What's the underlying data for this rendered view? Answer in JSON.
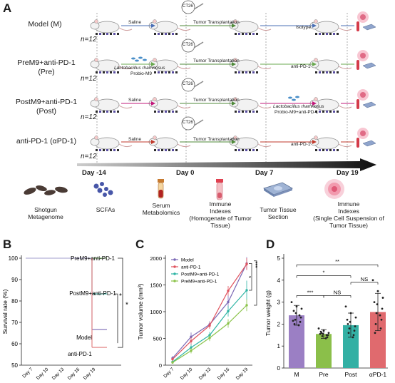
{
  "panel_a": {
    "letter": "A",
    "groups": [
      {
        "label_line1": "Model (M)",
        "label_line2": "",
        "n": "n=12",
        "first_step": "Saline",
        "first_step_sub": "",
        "middle": "Tumor Transplantation",
        "treatment": "Isotype",
        "treatment_sub": "",
        "color": "#4a6fb5"
      },
      {
        "label_line1": "PreM9+anti-PD-1",
        "label_line2": "(Pre)",
        "n": "n=12",
        "first_step": "Lactobacillus rhamnosus",
        "first_step_sub": "Probio-M9",
        "middle": "Tumor Transplantation",
        "treatment": "anti-PD-1",
        "treatment_sub": "",
        "color": "#6aa84f"
      },
      {
        "label_line1": "PostM9+anti-PD-1",
        "label_line2": "(Post)",
        "n": "n=12",
        "first_step": "Saline",
        "first_step_sub": "",
        "middle": "Tumor Transplantation",
        "treatment": "Lactobacillus rhamnosus",
        "treatment_sub": "Probio-M9+anti-PD-1",
        "color": "#c2187a"
      },
      {
        "label_line1": "anti-PD-1 (αPD-1)",
        "label_line2": "",
        "n": "n=12",
        "first_step": "Saline",
        "first_step_sub": "",
        "middle": "Tumor Transplantation",
        "treatment": "anti-PD-1",
        "treatment_sub": "",
        "color": "#c0392b"
      }
    ],
    "ct26_label": "CT26",
    "timeline": [
      "Day -14",
      "Day 0",
      "Day 7",
      "Day 19"
    ],
    "samples": [
      {
        "line1": "Shotgun",
        "line2": "Metagenome",
        "line3": "",
        "icon": "feces-pellets-icon"
      },
      {
        "line1": "SCFAs",
        "line2": "",
        "line3": "",
        "icon": "molecule-dots-icon"
      },
      {
        "line1": "Serum",
        "line2": "Metabolomics",
        "line3": "",
        "icon": "blood-tube-icon"
      },
      {
        "line1": "Immune",
        "line2": "Indexes",
        "line3": "(Homogenate of Tumor Tissue)",
        "icon": "tissue-tube-icon"
      },
      {
        "line1": "Tumor Tissue",
        "line2": "Section",
        "line3": "",
        "icon": "tissue-slide-icon"
      },
      {
        "line1": "Immune",
        "line2": "Indexes",
        "line3": "(Single Cell Suspension of Tumor Tissue)",
        "icon": "cell-cluster-icon"
      }
    ]
  },
  "chart_data": [
    {
      "panel": "B",
      "type": "line",
      "subtype": "kaplan-meier",
      "ylabel": "Survival rate (%)",
      "xlabel": "",
      "categories": [
        "Day 7",
        "Day 10",
        "Day 13",
        "Day 16",
        "Day 19"
      ],
      "ylim": [
        50,
        100
      ],
      "yticks": [
        50,
        60,
        70,
        80,
        90,
        100
      ],
      "series": [
        {
          "name": "PreM9+anti-PD-1",
          "color": "#6aa84f",
          "final": 100
        },
        {
          "name": "PostM9+anti-PD-1",
          "color": "#3ba89a",
          "final": 83.3
        },
        {
          "name": "Model",
          "color": "#7b68b5",
          "final": 66.7
        },
        {
          "name": "anti-PD-1",
          "color": "#e07a7a",
          "final": 58.3
        }
      ],
      "drop_day_index": 4,
      "annotations": [
        "*",
        "*"
      ],
      "grid": false
    },
    {
      "panel": "C",
      "type": "line",
      "ylabel": "Tumor volume (mm³)",
      "xlabel": "",
      "categories": [
        "Day 7",
        "Day 10",
        "Day 13",
        "Day 16",
        "Day 19"
      ],
      "ylim": [
        0,
        2000
      ],
      "yticks": [
        0,
        500,
        1000,
        1500,
        2000
      ],
      "series": [
        {
          "name": "Model",
          "color": "#7b68b5",
          "values": [
            130,
            530,
            760,
            1180,
            1900
          ],
          "err": [
            40,
            80,
            60,
            120,
            120
          ]
        },
        {
          "name": "anti-PD-1",
          "color": "#e0545f",
          "values": [
            110,
            450,
            740,
            1390,
            1890
          ],
          "err": [
            30,
            70,
            60,
            90,
            110
          ]
        },
        {
          "name": "PostM9+anti-PD-1",
          "color": "#2fb5a5",
          "values": [
            60,
            330,
            560,
            1010,
            1400
          ],
          "err": [
            25,
            60,
            60,
            100,
            180
          ]
        },
        {
          "name": "PreM9+anti-PD-1",
          "color": "#8bc34a",
          "values": [
            50,
            270,
            510,
            780,
            1120
          ],
          "err": [
            20,
            50,
            60,
            80,
            110
          ]
        }
      ],
      "annotations": [
        "*",
        "***"
      ],
      "legend": "top-left",
      "grid": false
    },
    {
      "panel": "D",
      "type": "bar",
      "ylabel": "Tumor weight (g)",
      "xlabel": "",
      "categories": [
        "M",
        "Pre",
        "Post",
        "αPD-1"
      ],
      "values": [
        2.4,
        1.55,
        1.95,
        2.55
      ],
      "errors": [
        0.45,
        0.2,
        0.55,
        0.85
      ],
      "colors": [
        "#9b7fc4",
        "#8bbf4a",
        "#33b0a4",
        "#e06a6e"
      ],
      "points": [
        [
          3.0,
          2.8,
          2.7,
          2.5,
          2.3,
          2.2,
          2.1,
          2.0,
          2.4,
          2.6,
          1.95,
          2.15
        ],
        [
          1.8,
          1.7,
          1.6,
          1.55,
          1.5,
          1.45,
          1.4,
          1.6,
          1.5,
          1.65,
          1.35,
          1.55
        ],
        [
          2.8,
          2.5,
          2.3,
          2.1,
          1.9,
          1.8,
          1.7,
          1.6,
          1.5,
          2.0,
          1.4,
          2.2
        ],
        [
          4.0,
          3.5,
          3.2,
          2.9,
          2.7,
          2.5,
          2.2,
          2.0,
          1.8,
          1.6,
          2.4,
          3.0
        ]
      ],
      "ylim": [
        0,
        5
      ],
      "yticks": [
        0,
        1,
        2,
        3,
        4,
        5
      ],
      "comparisons": [
        {
          "from": 0,
          "to": 1,
          "label": "***"
        },
        {
          "from": 1,
          "to": 2,
          "label": "NS"
        },
        {
          "from": 2,
          "to": 3,
          "label": "NS"
        },
        {
          "from": 0,
          "to": 2,
          "label": "*"
        },
        {
          "from": 0,
          "to": 3,
          "label": "**"
        }
      ]
    }
  ],
  "panel_letters": {
    "b": "B",
    "c": "C",
    "d": "D"
  }
}
